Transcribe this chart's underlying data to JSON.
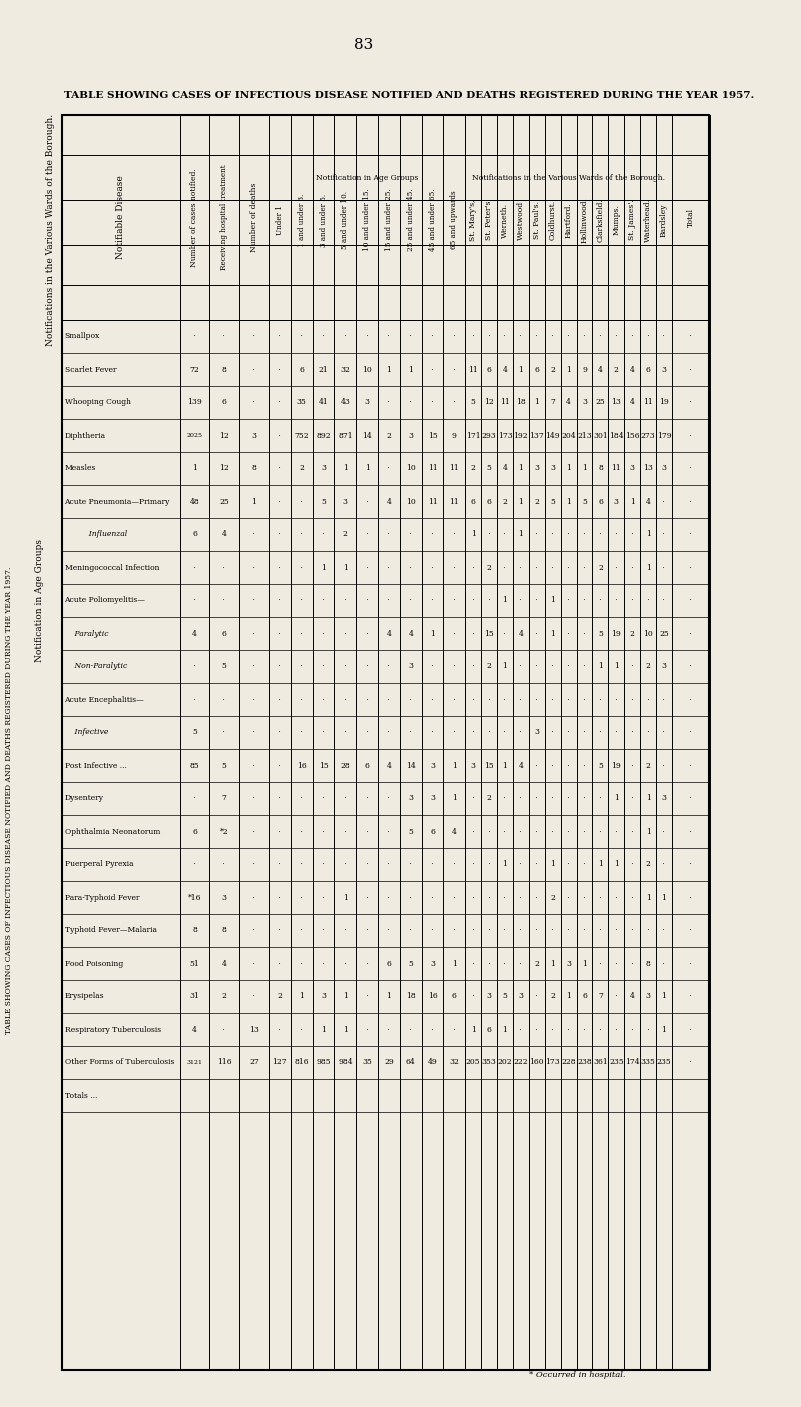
{
  "title": "TABLE SHOWING CASES OF INFECTIOUS DISEASE NOTIFIED AND DEATHS REGISTERED DURING THE YEAR 1957.",
  "page_number": "83",
  "background_color": "#f0ebe0",
  "diseases": [
    "Smallpox",
    "Scarlet Fever",
    "Whooping Cough",
    "Diphtheria",
    "Measles",
    "Acute Pneumonia—Primary",
    "      Influenzal",
    "Meningococcal Infection",
    "Acute Poliomyelitis—",
    "    Paralytic",
    "    Non-Paralytic",
    "Acute Encephalitis—",
    "    Infective",
    "Post Infective ...",
    "Dysentery",
    "Ophthalmia Neonatorum ...",
    "Puerperal Pyrexia",
    "Para-Typhoid Fever",
    "Typhoid Fever—Malaria",
    "Food Poisoning",
    "Erysipelas",
    "Respiratory Tuberculosis",
    "Other Forms of Tuberculosis",
    "Totals ..."
  ],
  "col_headers_top": [
    "Notifiable Disease",
    "Number of cases notified.",
    "Receiving hospital treatment",
    "Number of deaths"
  ],
  "age_group_headers": [
    "Under 1",
    "1 and under 3.",
    "3 and under 5.",
    "5 and under 10.",
    "10 and under 15.",
    "15 and under 25.",
    "25 and under 45.",
    "45 and under 65.",
    "65 and upwards"
  ],
  "ward_headers": [
    "St. Mary's,",
    "St. Peter's",
    "Werneth.",
    "Westwood",
    "St. Paul's.",
    "Coldhurst.",
    "Hartford.",
    "Hollinwood.",
    "Clarksfield.",
    "Mumps.",
    "St. James'.",
    "Waterhead.",
    "Bardsley"
  ],
  "data": {
    "num_cases": [
      ": :",
      "72",
      "139",
      "2025",
      "1",
      "48",
      "6",
      ": :",
      ": :",
      "4",
      ": :",
      ": :",
      "5",
      "85",
      ": :",
      "6",
      ": :",
      "*16",
      "8",
      "51",
      "31",
      "4",
      "3121"
    ],
    "hosp_treat": [
      ": :",
      "8",
      "6",
      "12",
      "12",
      "25",
      "4",
      ": :",
      ": :",
      "6",
      "5",
      ": :",
      ": :",
      "5",
      "7",
      "*2",
      "3",
      "8",
      "4",
      "2",
      "116"
    ],
    "num_deaths": [
      ": :",
      ": :",
      ": :",
      "3",
      "8",
      "1",
      ": :",
      ": :",
      ": :",
      ": :",
      ": :",
      ": :",
      ": :",
      ": :",
      ": :",
      ": :",
      ": :",
      "13",
      "27"
    ],
    "age_under1": [
      ":",
      ":",
      "1",
      ":",
      ":",
      "7",
      ":",
      ":",
      ":",
      ":",
      ":",
      ":",
      ":",
      ":",
      ":",
      ":",
      ":",
      ":",
      ":",
      ":",
      "2",
      ":",
      "127"
    ],
    "age_1_3": [
      ":",
      "6",
      "35",
      "752",
      "2",
      ":",
      ":",
      "2",
      ":",
      ":",
      "16",
      ":",
      "2",
      "1",
      ":",
      "816"
    ],
    "age_3_5": [
      ":",
      "21",
      "41",
      "892",
      "3",
      "5",
      "1",
      ":",
      ":",
      "15",
      ":",
      ":",
      "2",
      "1",
      "3",
      "1",
      "985"
    ],
    "age_5_10": [
      ":",
      "32",
      "43",
      "871",
      "1",
      "3",
      "2",
      "1",
      ":",
      ":",
      "28",
      ":",
      "1",
      ":",
      "1",
      "1",
      "984"
    ],
    "age_10_15": [
      ":",
      "10",
      "3",
      "14",
      "1",
      ":",
      ":",
      ":",
      ":",
      "6",
      ":",
      ":",
      ":",
      ":",
      "1",
      "35"
    ],
    "age_15_25": [
      ":",
      "1",
      ":",
      "2",
      "4",
      "7",
      ":",
      ":",
      ":",
      "4",
      "4",
      ":",
      ":",
      "6",
      "1",
      "29"
    ],
    "age_25_45": [
      ":",
      "1",
      ":",
      "3",
      "10",
      "10",
      ":",
      ":",
      ":",
      "14",
      "3",
      ":",
      "5",
      "18",
      ":",
      "64"
    ],
    "age_45_65": [
      ":",
      ":",
      ":",
      "15",
      "11",
      ":",
      ":",
      "1",
      ":",
      ":",
      "3",
      "3",
      "6",
      ":",
      "49"
    ],
    "age_65up": [
      ":",
      ":",
      ":",
      "9",
      "11",
      ":",
      ":",
      "1",
      ":",
      ":",
      "1",
      "4",
      "6",
      ":",
      "32"
    ],
    "ward_stmarys": [
      ":",
      "11",
      "5",
      "171",
      "2",
      "6",
      "1",
      ":",
      ":",
      "3",
      ":",
      ":",
      ":",
      "1",
      "4",
      ":",
      "205"
    ],
    "ward_stpeters": [
      ":",
      "6",
      "12",
      "293",
      "5",
      "6",
      ":",
      "2",
      ":",
      "15",
      "2",
      ":",
      "2",
      "3",
      "6",
      "1",
      "353"
    ],
    "ward_werneth": [
      ":",
      "4",
      "11",
      "173",
      "4",
      "2",
      ":",
      ":",
      "1",
      ":",
      "1",
      ":",
      ":",
      "1",
      "5",
      ":",
      "202"
    ],
    "ward_westwood": [
      ":",
      "1",
      "18",
      "192",
      "1",
      "1",
      ":",
      ":",
      ":",
      "4",
      ":",
      ":",
      ":",
      "3",
      "1",
      "222"
    ],
    "ward_stpauls": [
      ":",
      "6",
      "1",
      "137",
      "2",
      "3",
      ":",
      ":",
      ":",
      ":",
      "3",
      ":",
      "2",
      ":",
      "160"
    ],
    "ward_coldhurst": [
      ":",
      "2",
      "7",
      "149",
      "3",
      "5",
      ":",
      ":",
      "1",
      ":",
      "1",
      ":",
      "2",
      "1",
      "2",
      ":",
      "173"
    ],
    "ward_hartford": [
      ":",
      "1",
      "4",
      "204",
      "1",
      "1",
      ":",
      ":",
      ":",
      ":",
      ":",
      ":",
      ":",
      "3",
      "1",
      "228"
    ],
    "ward_hollinwood": [
      ":",
      "9",
      "3",
      "213",
      "1",
      "5",
      ":",
      ":",
      ":",
      ":",
      ":",
      "1",
      ":",
      "6",
      ":",
      "238"
    ],
    "ward_clarksfield": [
      ":",
      "4",
      "25",
      "301",
      "8",
      "6",
      "2",
      ":",
      "5",
      "1",
      ":",
      "2",
      ":",
      "7",
      ":",
      "361"
    ],
    "ward_mumps": [
      ":",
      "2",
      "13",
      "184",
      "11",
      "3",
      ":",
      ":",
      "19",
      "1",
      ":",
      "2",
      ":",
      ":",
      ":",
      "235"
    ],
    "ward_stjames": [
      ":",
      "4",
      "4",
      "156",
      "3",
      "1",
      ":",
      ":",
      "2",
      ":",
      ":",
      ":",
      "4",
      ":",
      "174"
    ],
    "ward_waterhead": [
      ":",
      "6",
      "11",
      "273",
      "13",
      "4",
      "1",
      ":",
      "1",
      "10",
      "2",
      "1",
      ":",
      "3",
      "8",
      ":",
      "335"
    ],
    "ward_bardsley": [
      ":",
      "3",
      "19",
      "179",
      "3",
      ":",
      ":",
      ":",
      "25",
      "3",
      ":",
      ":",
      "1",
      "1",
      ":",
      "235"
    ]
  }
}
